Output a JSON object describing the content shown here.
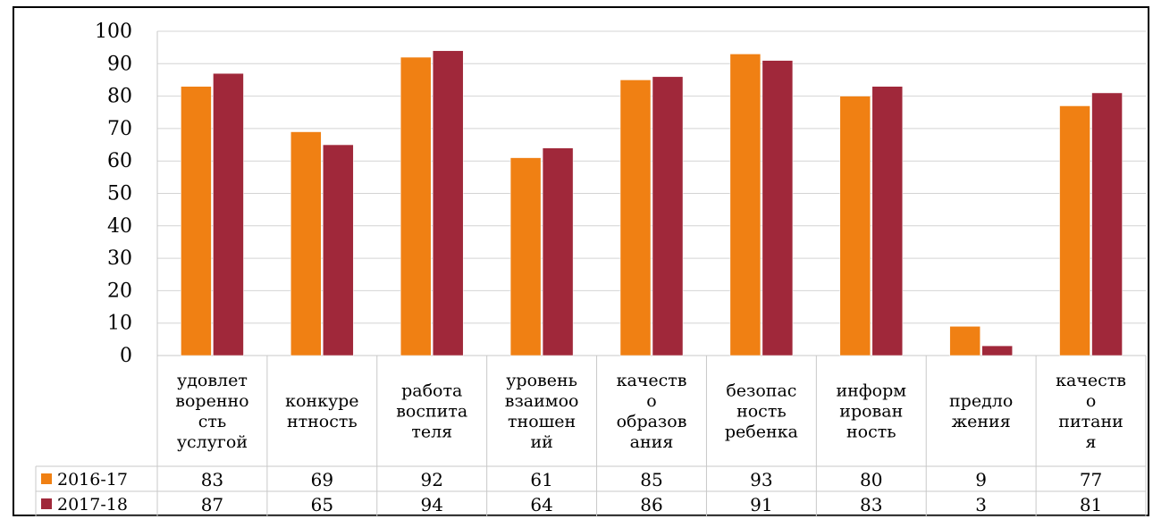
{
  "chart_data": {
    "type": "bar",
    "ylim": [
      0,
      100
    ],
    "y_ticks": [
      "0",
      "10",
      "20",
      "30",
      "40",
      "50",
      "60",
      "70",
      "80",
      "90",
      "100"
    ],
    "grid": true,
    "legend": "data-table",
    "categories": [
      [
        "удовлет",
        "воренно",
        "сть",
        "услугой"
      ],
      [
        "конкуре",
        "нтность"
      ],
      [
        "работа",
        "воспита",
        "теля"
      ],
      [
        "уровень",
        "взаимоо",
        "тношен",
        "ий"
      ],
      [
        "качеств",
        "о",
        "образов",
        "ания"
      ],
      [
        "безопас",
        "ность",
        "ребенка"
      ],
      [
        "информ",
        "ирован",
        "ность"
      ],
      [
        "предло",
        "жения"
      ],
      [
        "качеств",
        "о",
        "питани",
        "я"
      ]
    ],
    "series": [
      {
        "name": "2016-17",
        "color": "#F08013",
        "values": [
          83,
          69,
          92,
          61,
          85,
          93,
          80,
          9,
          77
        ]
      },
      {
        "name": "2017-18",
        "color": "#A0283A",
        "values": [
          87,
          65,
          94,
          64,
          86,
          91,
          83,
          3,
          81
        ]
      }
    ]
  }
}
